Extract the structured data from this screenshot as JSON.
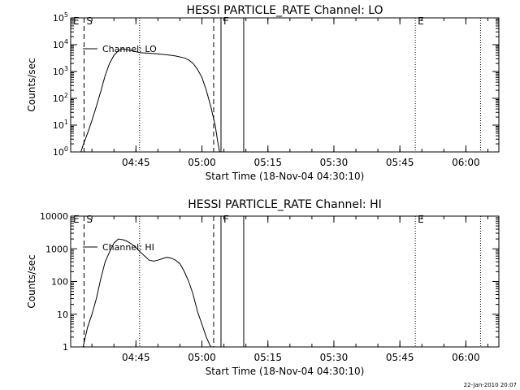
{
  "footer_timestamp": "22-Jan-2010 20:07",
  "chart_data": [
    {
      "type": "line",
      "title": "HESSI PARTICLE_RATE Channel: LO",
      "xlabel": "Start Time (18-Nov-04 04:30:10)",
      "ylabel": "Counts/sec",
      "yscale": "log",
      "ylim": [
        1,
        100000
      ],
      "ytick_values": [
        1,
        10,
        100,
        1000,
        10000,
        100000
      ],
      "ytick_labels": [
        "10^0",
        "10^1",
        "10^2",
        "10^3",
        "10^4",
        "10^5"
      ],
      "xlim": [
        "04:30:10",
        "06:07:30"
      ],
      "xtick_values": [
        "04:45",
        "05:00",
        "05:15",
        "05:30",
        "05:45",
        "06:00"
      ],
      "legend_label": "Channel: LO",
      "markers": [
        {
          "label": "E",
          "style": "dotted",
          "x": "04:30:10"
        },
        {
          "label": "S",
          "style": "dashed",
          "x": "04:33:12"
        },
        {
          "label": "",
          "style": "dotted",
          "x": "04:45:50"
        },
        {
          "label": "",
          "style": "dashed",
          "x": "05:02:40"
        },
        {
          "label": "F",
          "style": "solid",
          "x": "05:04:20"
        },
        {
          "label": "",
          "style": "solid",
          "x": "05:09:30"
        },
        {
          "label": "E",
          "style": "dotted",
          "x": "05:48:30"
        },
        {
          "label": "",
          "style": "dotted",
          "x": "06:03:20"
        }
      ],
      "series": [
        {
          "x": [
            "04:32:30",
            "04:33:00",
            "04:34:00",
            "04:35:00",
            "04:36:00",
            "04:37:00",
            "04:38:00",
            "04:39:00",
            "04:40:00",
            "04:41:00",
            "04:42:00",
            "04:43:00",
            "04:44:00",
            "04:45:00",
            "04:46:00",
            "04:48:00",
            "04:50:00",
            "04:52:00",
            "04:54:00",
            "04:56:00",
            "04:57:00",
            "04:58:00",
            "04:59:00",
            "05:00:00",
            "05:01:00",
            "05:02:00",
            "05:03:00",
            "05:03:30",
            "05:04:00"
          ],
          "values": [
            1,
            1.8,
            5,
            15,
            50,
            180,
            700,
            2000,
            4000,
            6000,
            7000,
            6500,
            6000,
            5500,
            5000,
            4800,
            4500,
            4200,
            3800,
            3200,
            2700,
            2000,
            1200,
            600,
            200,
            50,
            10,
            3,
            1
          ]
        }
      ]
    },
    {
      "type": "line",
      "title": "HESSI PARTICLE_RATE Channel: HI",
      "xlabel": "Start Time (18-Nov-04 04:30:10)",
      "ylabel": "Counts/sec",
      "yscale": "log",
      "ylim": [
        1,
        10000
      ],
      "ytick_values": [
        1,
        10,
        100,
        1000,
        10000
      ],
      "ytick_labels": [
        "1",
        "10",
        "100",
        "1000",
        "10000"
      ],
      "xlim": [
        "04:30:10",
        "06:07:30"
      ],
      "xtick_values": [
        "04:45",
        "05:00",
        "05:15",
        "05:30",
        "05:45",
        "06:00"
      ],
      "legend_label": "Channel: HI",
      "markers": [
        {
          "label": "E",
          "style": "dotted",
          "x": "04:30:10"
        },
        {
          "label": "S",
          "style": "dashed",
          "x": "04:33:12"
        },
        {
          "label": "",
          "style": "dotted",
          "x": "04:45:50"
        },
        {
          "label": "",
          "style": "dashed",
          "x": "05:02:40"
        },
        {
          "label": "F",
          "style": "solid",
          "x": "05:04:20"
        },
        {
          "label": "",
          "style": "solid",
          "x": "05:09:30"
        },
        {
          "label": "E",
          "style": "dotted",
          "x": "05:48:30"
        },
        {
          "label": "",
          "style": "dotted",
          "x": "06:03:20"
        }
      ],
      "series": [
        {
          "x": [
            "04:33:00",
            "04:33:30",
            "04:34:00",
            "04:35:00",
            "04:36:00",
            "04:37:00",
            "04:38:00",
            "04:39:00",
            "04:40:00",
            "04:41:00",
            "04:42:00",
            "04:43:00",
            "04:44:00",
            "04:45:00",
            "04:46:00",
            "04:47:00",
            "04:48:00",
            "04:49:00",
            "04:50:00",
            "04:51:00",
            "04:52:00",
            "04:53:00",
            "04:54:00",
            "04:55:00",
            "04:56:00",
            "04:57:00",
            "04:58:00",
            "04:59:00",
            "05:00:00",
            "05:01:00",
            "05:02:00"
          ],
          "values": [
            1,
            2,
            4,
            10,
            30,
            120,
            400,
            800,
            1500,
            2000,
            1900,
            1700,
            1400,
            1100,
            800,
            600,
            450,
            420,
            450,
            500,
            550,
            520,
            450,
            350,
            200,
            100,
            40,
            12,
            5,
            2,
            1
          ]
        }
      ]
    }
  ]
}
